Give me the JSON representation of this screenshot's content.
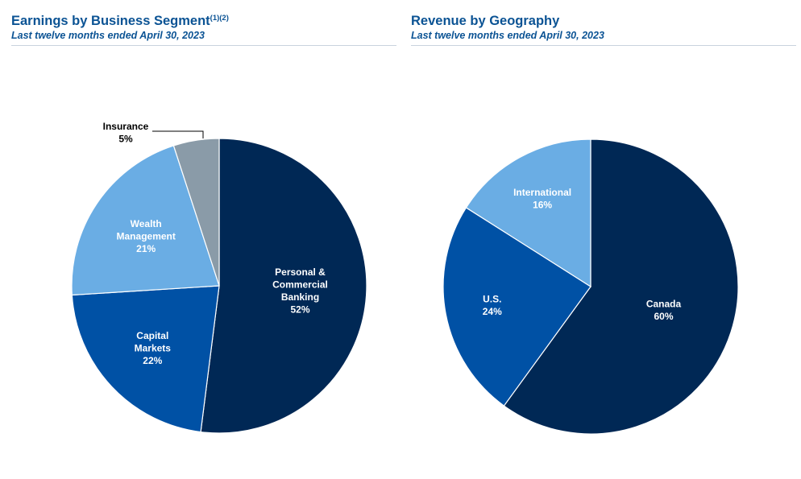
{
  "chart_data": [
    {
      "type": "pie",
      "title": "Earnings by Business Segment",
      "title_footnote": "(1)(2)",
      "subtitle": "Last twelve months ended April 30, 2023",
      "slices": [
        {
          "label_lines": [
            "Personal &",
            "Commercial",
            "Banking"
          ],
          "value": 52,
          "value_label": "52%",
          "color": "#002855",
          "text_color": "#ffffff"
        },
        {
          "label_lines": [
            "Capital",
            "Markets"
          ],
          "value": 22,
          "value_label": "22%",
          "color": "#0051a5",
          "text_color": "#ffffff"
        },
        {
          "label_lines": [
            "Wealth",
            "Management"
          ],
          "value": 21,
          "value_label": "21%",
          "color": "#6aade4",
          "text_color": "#ffffff"
        },
        {
          "label_lines": [
            "Insurance"
          ],
          "value": 5,
          "value_label": "5%",
          "color": "#8a9ba8",
          "text_color": "#000000",
          "callout": true
        }
      ]
    },
    {
      "type": "pie",
      "title": "Revenue by Geography",
      "subtitle": "Last twelve months ended April 30, 2023",
      "slices": [
        {
          "label_lines": [
            "Canada"
          ],
          "value": 60,
          "value_label": "60%",
          "color": "#002855",
          "text_color": "#ffffff"
        },
        {
          "label_lines": [
            "U.S."
          ],
          "value": 24,
          "value_label": "24%",
          "color": "#0051a5",
          "text_color": "#ffffff"
        },
        {
          "label_lines": [
            "International"
          ],
          "value": 16,
          "value_label": "16%",
          "color": "#6aade4",
          "text_color": "#ffffff"
        }
      ]
    }
  ]
}
